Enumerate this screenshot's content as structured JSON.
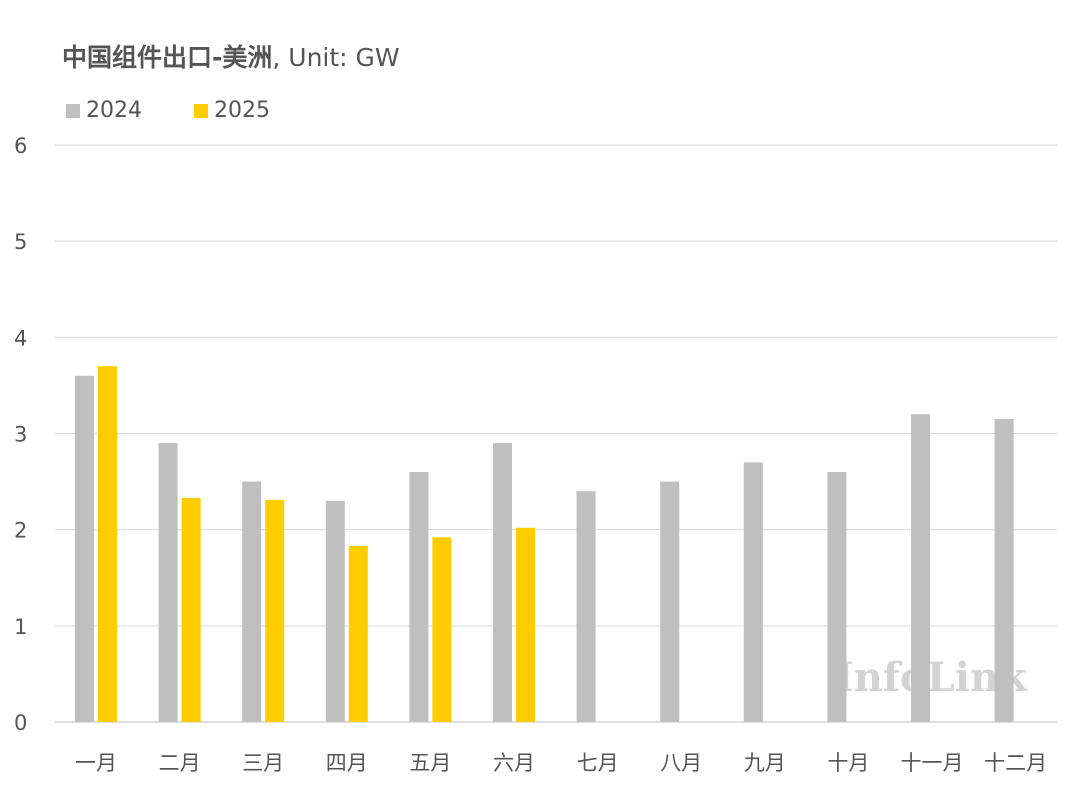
{
  "title": {
    "main": "中国组件出口-美洲",
    "suffix": ", Unit: GW"
  },
  "watermark": "InfoLink",
  "colors": {
    "2024": "#bfbfbf",
    "2025": "#ffcc00",
    "grid": "#d9d9d9",
    "text": "#555555"
  },
  "chart_data": {
    "type": "bar",
    "title": "中国组件出口-美洲, Unit: GW",
    "xlabel": "",
    "ylabel": "",
    "ylim": [
      0,
      6
    ],
    "yticks": [
      0,
      1,
      2,
      3,
      4,
      5,
      6
    ],
    "grid": true,
    "legend_position": "top-left",
    "categories": [
      "一月",
      "二月",
      "三月",
      "四月",
      "五月",
      "六月",
      "七月",
      "八月",
      "九月",
      "十月",
      "十一月",
      "十二月"
    ],
    "series": [
      {
        "name": "2024",
        "values": [
          3.6,
          2.9,
          2.5,
          2.3,
          2.6,
          2.9,
          2.4,
          2.5,
          2.7,
          2.6,
          3.2,
          3.15
        ]
      },
      {
        "name": "2025",
        "values": [
          3.7,
          2.33,
          2.31,
          1.83,
          1.92,
          2.02,
          null,
          null,
          null,
          null,
          null,
          null
        ]
      }
    ]
  }
}
